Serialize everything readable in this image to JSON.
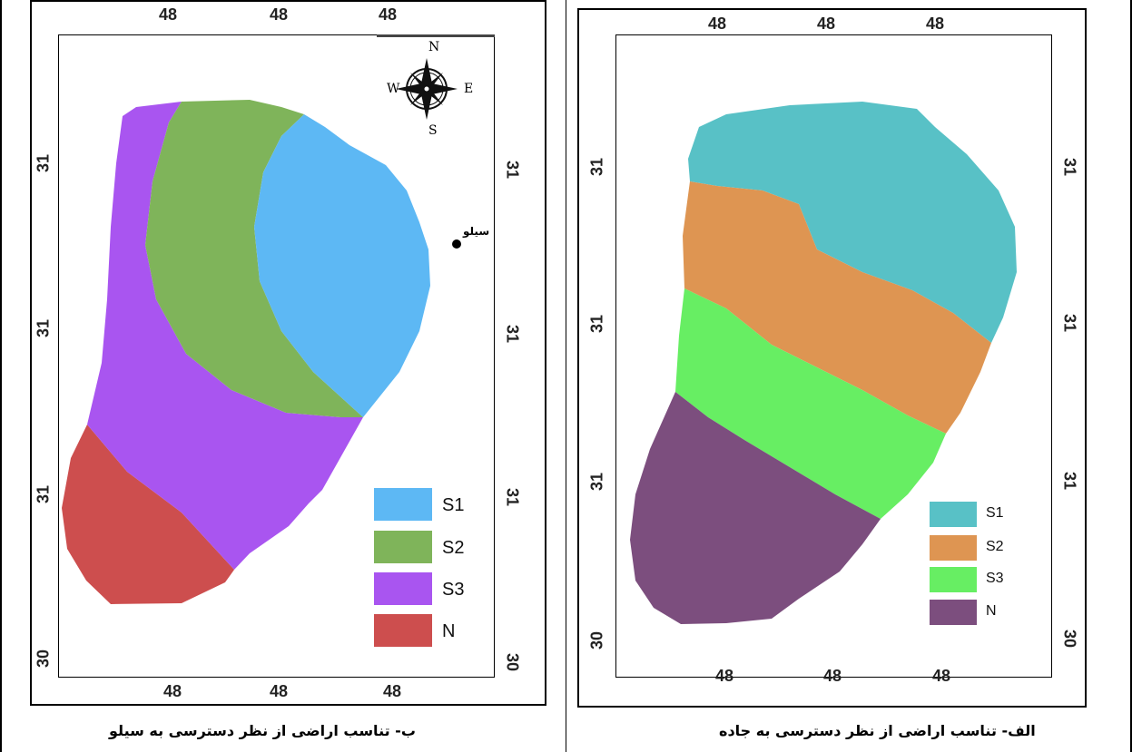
{
  "left_map": {
    "top_ticks": [
      "48",
      "48",
      "48"
    ],
    "bottom_ticks": [
      "48",
      "48",
      "48"
    ],
    "left_ticks": [
      "31",
      "31",
      "31",
      "30"
    ],
    "right_ticks": [
      "31",
      "31",
      "31",
      "30"
    ],
    "compass": {
      "n": "N",
      "s": "S",
      "e": "E",
      "w": "W"
    },
    "point_label": "سیلو",
    "legend": [
      {
        "label": "S1",
        "color": "#5db8f4"
      },
      {
        "label": "S2",
        "color": "#7fb45a"
      },
      {
        "label": "S3",
        "color": "#a955f0"
      },
      {
        "label": "N",
        "color": "#cd4e4e"
      }
    ],
    "caption": "ب- تناسب اراضی از نظر دسترسی به سیلو"
  },
  "right_map": {
    "top_ticks": [
      "48",
      "48",
      "48"
    ],
    "bottom_ticks": [
      "48",
      "48",
      "48"
    ],
    "left_ticks": [
      "31",
      "31",
      "31",
      "30"
    ],
    "right_ticks": [
      "31",
      "31",
      "31",
      "30"
    ],
    "legend": [
      {
        "label": "S1",
        "color": "#58c1c6"
      },
      {
        "label": "S2",
        "color": "#de9552"
      },
      {
        "label": "S3",
        "color": "#67ee63"
      },
      {
        "label": "N",
        "color": "#7c4e7e"
      }
    ],
    "caption": "الف- تناسب اراضی از نظر دسترسی به جاده"
  }
}
